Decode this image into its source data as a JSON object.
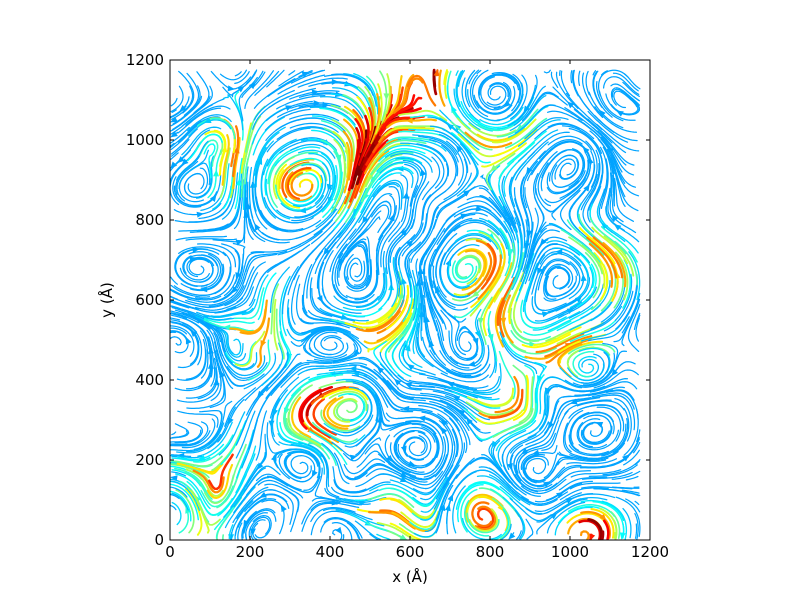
{
  "chart_data": {
    "type": "streamline",
    "title": "",
    "xlabel": "x (Å)",
    "ylabel": "y (Å)",
    "xlim": [
      0,
      1200
    ],
    "ylim": [
      0,
      1200
    ],
    "xticks": [
      "0",
      "200",
      "400",
      "600",
      "800",
      "1000",
      "1200"
    ],
    "yticks": [
      "0",
      "200",
      "400",
      "600",
      "800",
      "1000",
      "1200"
    ],
    "colormap": "jet",
    "grid": false,
    "high_speed_regions": [
      {
        "x": 80,
        "y": 20
      },
      {
        "x": 395,
        "y": 355
      },
      {
        "x": 340,
        "y": 300
      },
      {
        "x": 570,
        "y": 1060
      },
      {
        "x": 500,
        "y": 1000
      },
      {
        "x": 650,
        "y": 1140
      },
      {
        "x": 820,
        "y": 980
      },
      {
        "x": 800,
        "y": 680
      },
      {
        "x": 830,
        "y": 580
      },
      {
        "x": 550,
        "y": 540
      },
      {
        "x": 980,
        "y": 480
      },
      {
        "x": 860,
        "y": 330
      },
      {
        "x": 1070,
        "y": 30
      },
      {
        "x": 580,
        "y": 60
      },
      {
        "x": 790,
        "y": 80
      },
      {
        "x": 160,
        "y": 980
      },
      {
        "x": 470,
        "y": 920
      },
      {
        "x": 300,
        "y": 900
      },
      {
        "x": 230,
        "y": 520
      },
      {
        "x": 120,
        "y": 160
      },
      {
        "x": 1100,
        "y": 700
      }
    ]
  }
}
